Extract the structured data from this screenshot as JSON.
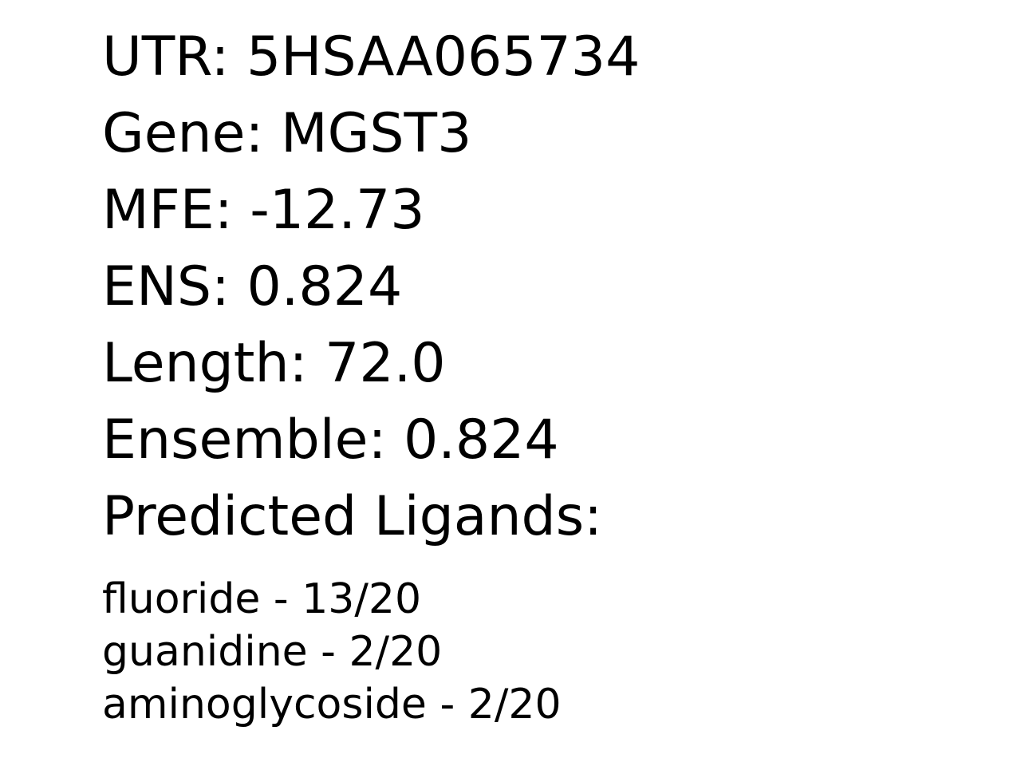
{
  "fields": [
    {
      "label": "UTR",
      "value": "5HSAA065734"
    },
    {
      "label": "Gene",
      "value": "MGST3"
    },
    {
      "label": "MFE",
      "value": "-12.73"
    },
    {
      "label": "ENS",
      "value": "0.824"
    },
    {
      "label": "Length",
      "value": "72.0"
    },
    {
      "label": "Ensemble",
      "value": "0.824"
    }
  ],
  "ligands_heading": "Predicted Ligands:",
  "ligands": [
    {
      "name": "fluoride",
      "score": "13/20"
    },
    {
      "name": "guanidine",
      "score": "2/20"
    },
    {
      "name": "aminoglycoside",
      "score": "2/20"
    }
  ]
}
